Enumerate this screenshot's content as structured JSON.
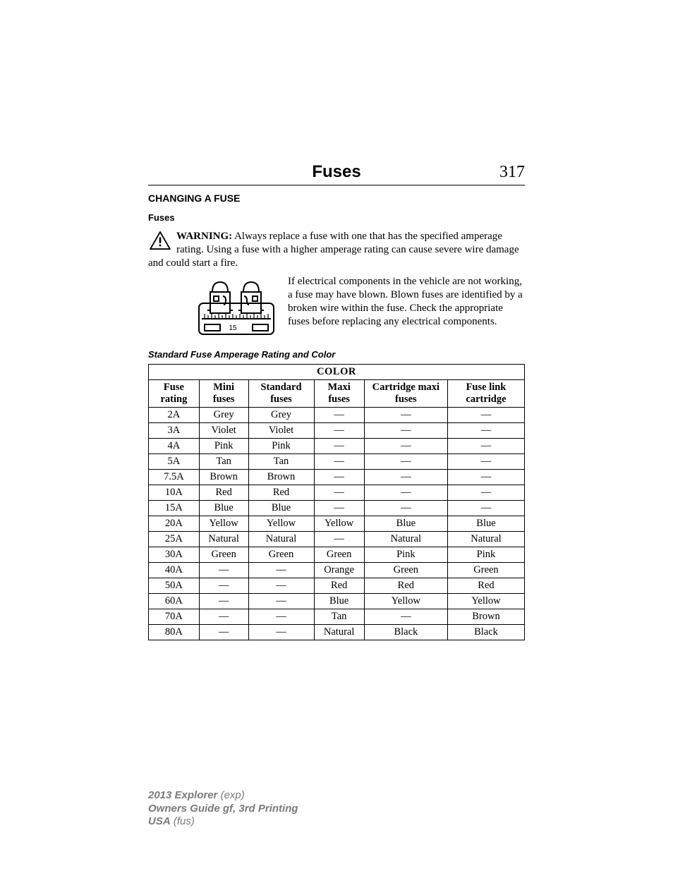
{
  "header": {
    "title": "Fuses",
    "page_number": "317"
  },
  "section_heading": "CHANGING A FUSE",
  "sub_heading": "Fuses",
  "warning": {
    "label": "WARNING:",
    "text": " Always replace a fuse with one that has the specified amperage rating. Using a fuse with a higher amperage rating can cause severe wire damage and could start a fire."
  },
  "fuse_figure": {
    "label": "15"
  },
  "body_text": "If electrical components in the vehicle are not working, a fuse may have blown. Blown fuses are identified by a broken wire within the fuse. Check the appropriate fuses before replacing any electrical components.",
  "table_caption": "Standard Fuse Amperage Rating and Color",
  "table": {
    "span_header": "COLOR",
    "columns": [
      "Fuse rating",
      "Mini fuses",
      "Standard fuses",
      "Maxi fuses",
      "Cartridge maxi fuses",
      "Fuse link cartridge"
    ],
    "rows": [
      [
        "2A",
        "Grey",
        "Grey",
        "—",
        "—",
        "—"
      ],
      [
        "3A",
        "Violet",
        "Violet",
        "—",
        "—",
        "—"
      ],
      [
        "4A",
        "Pink",
        "Pink",
        "—",
        "—",
        "—"
      ],
      [
        "5A",
        "Tan",
        "Tan",
        "—",
        "—",
        "—"
      ],
      [
        "7.5A",
        "Brown",
        "Brown",
        "—",
        "—",
        "—"
      ],
      [
        "10A",
        "Red",
        "Red",
        "—",
        "—",
        "—"
      ],
      [
        "15A",
        "Blue",
        "Blue",
        "—",
        "—",
        "—"
      ],
      [
        "20A",
        "Yellow",
        "Yellow",
        "Yellow",
        "Blue",
        "Blue"
      ],
      [
        "25A",
        "Natural",
        "Natural",
        "—",
        "Natural",
        "Natural"
      ],
      [
        "30A",
        "Green",
        "Green",
        "Green",
        "Pink",
        "Pink"
      ],
      [
        "40A",
        "—",
        "—",
        "Orange",
        "Green",
        "Green"
      ],
      [
        "50A",
        "—",
        "—",
        "Red",
        "Red",
        "Red"
      ],
      [
        "60A",
        "—",
        "—",
        "Blue",
        "Yellow",
        "Yellow"
      ],
      [
        "70A",
        "—",
        "—",
        "Tan",
        "—",
        "Brown"
      ],
      [
        "80A",
        "—",
        "—",
        "Natural",
        "Black",
        "Black"
      ]
    ]
  },
  "footer": {
    "line1_bold": "2013 Explorer",
    "line1_rest": " (exp)",
    "line2_bold": "Owners Guide gf, 3rd Printing",
    "line3_bold": "USA",
    "line3_rest": " (fus)"
  }
}
